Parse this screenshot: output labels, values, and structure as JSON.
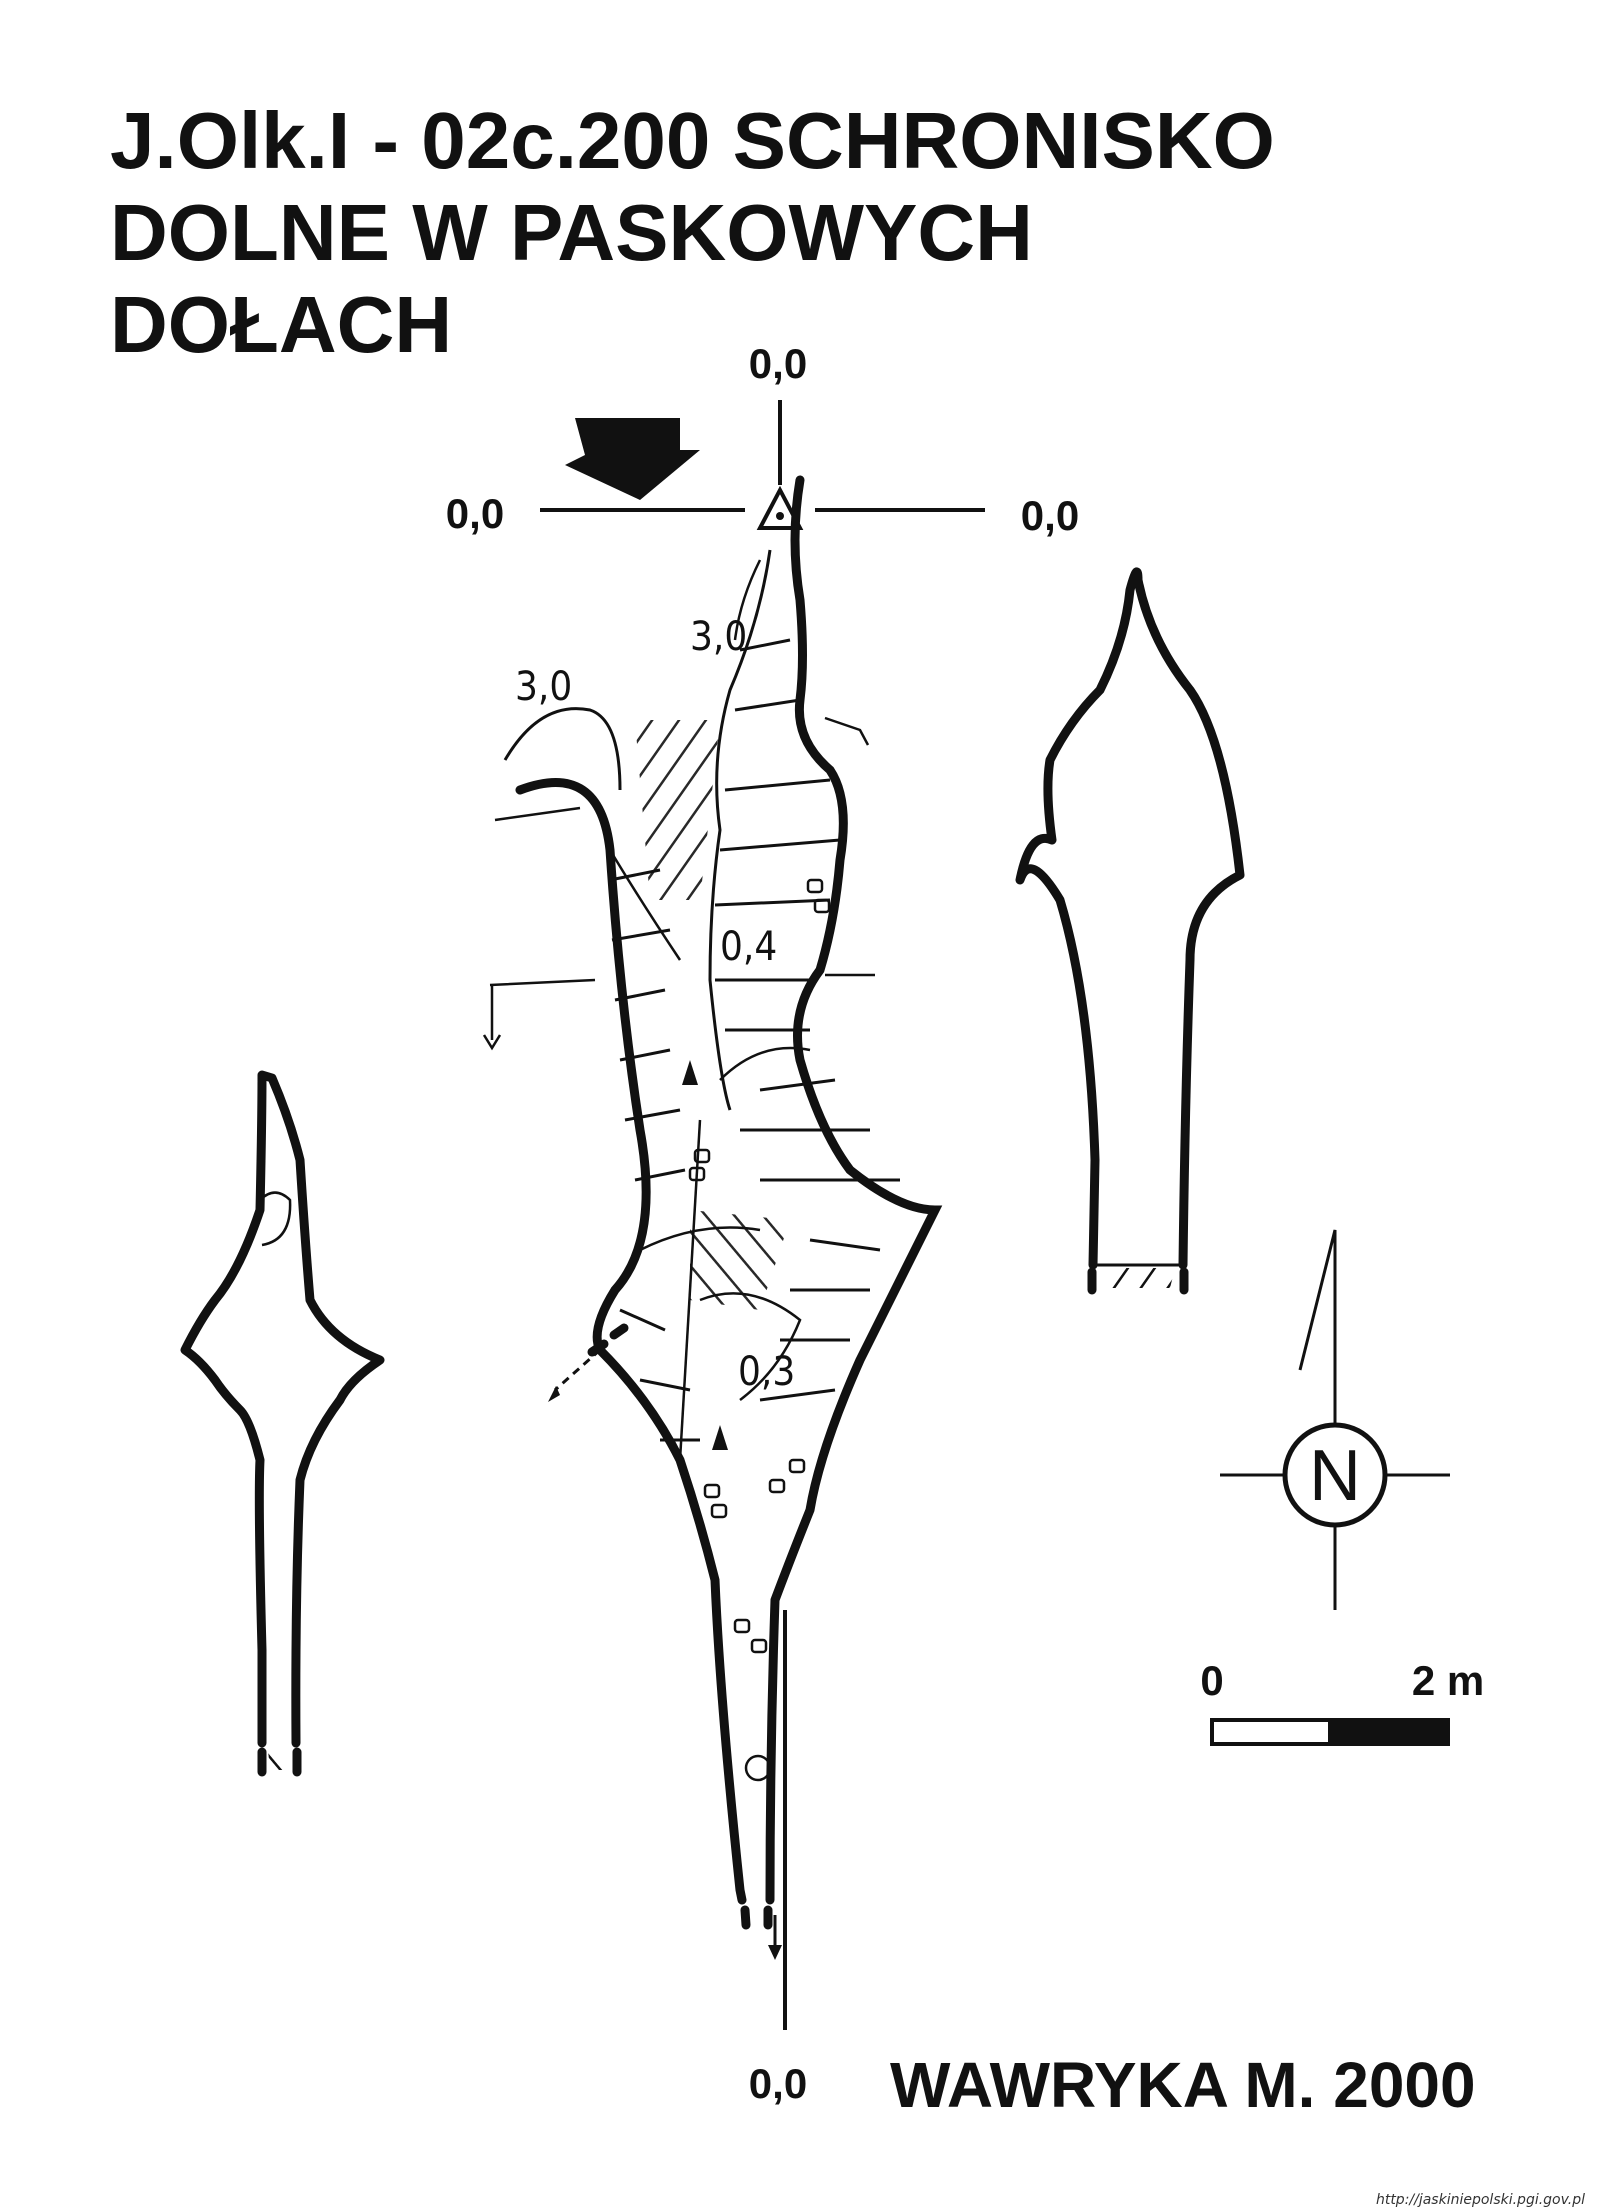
{
  "title": {
    "line1": "J.Olk.I - 02c.200  SCHRONISKO",
    "line2": "DOLNE W PASKOWYCH",
    "line3": "DOŁACH"
  },
  "reference_labels": {
    "top": "0,0",
    "left": "0,0",
    "right": "0,0",
    "bottom": "0,0"
  },
  "depth_labels": {
    "upper": "3,0",
    "left": "3,0",
    "middle": "0,4",
    "lower": "0,3"
  },
  "compass": {
    "letter": "N"
  },
  "scale_bar": {
    "start": "0",
    "end": "2 m"
  },
  "author": "WAWRYKA M. 2000",
  "source": "http://jaskiniepolski.pgi.gov.pl",
  "colors": {
    "ink": "#111111",
    "background": "#ffffff"
  }
}
